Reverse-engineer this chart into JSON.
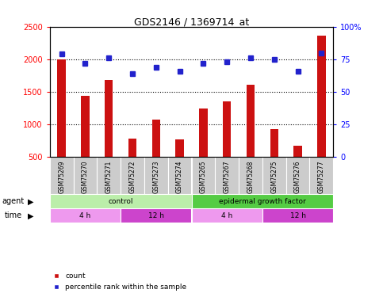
{
  "title": "GDS2146 / 1369714_at",
  "samples": [
    "GSM75269",
    "GSM75270",
    "GSM75271",
    "GSM75272",
    "GSM75273",
    "GSM75274",
    "GSM75265",
    "GSM75267",
    "GSM75268",
    "GSM75275",
    "GSM75276",
    "GSM75277"
  ],
  "counts": [
    2000,
    1440,
    1680,
    790,
    1075,
    770,
    1245,
    1360,
    1605,
    935,
    675,
    2360
  ],
  "percentiles": [
    79,
    72,
    76,
    64,
    69,
    66,
    72,
    73,
    76,
    75,
    66,
    80
  ],
  "ylim_left": [
    500,
    2500
  ],
  "ylim_right": [
    0,
    100
  ],
  "yticks_left": [
    500,
    1000,
    1500,
    2000,
    2500
  ],
  "yticks_right": [
    0,
    25,
    50,
    75,
    100
  ],
  "ytick_right_labels": [
    "0",
    "25",
    "50",
    "75",
    "100%"
  ],
  "bar_color": "#cc1111",
  "dot_color": "#2222cc",
  "agent_row": [
    {
      "label": "control",
      "start": 0,
      "end": 6,
      "color": "#bbeeaa"
    },
    {
      "label": "epidermal growth factor",
      "start": 6,
      "end": 12,
      "color": "#55cc44"
    }
  ],
  "time_row": [
    {
      "label": "4 h",
      "start": 0,
      "end": 3,
      "color": "#ee99ee"
    },
    {
      "label": "12 h",
      "start": 3,
      "end": 6,
      "color": "#cc44cc"
    },
    {
      "label": "4 h",
      "start": 6,
      "end": 9,
      "color": "#ee99ee"
    },
    {
      "label": "12 h",
      "start": 9,
      "end": 12,
      "color": "#cc44cc"
    }
  ],
  "sample_bg_color": "#cccccc",
  "legend_count_label": "count",
  "legend_pct_label": "percentile rank within the sample",
  "xlabel_agent": "agent",
  "xlabel_time": "time",
  "bar_width": 0.35
}
